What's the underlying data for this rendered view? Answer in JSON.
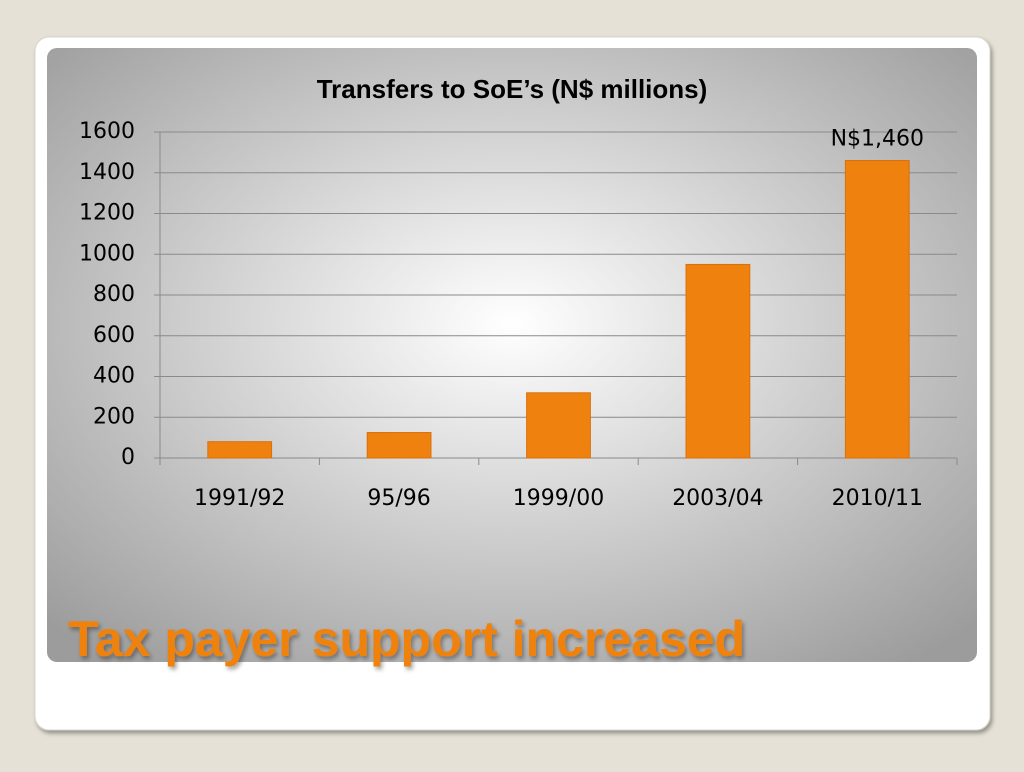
{
  "slide_title": "Tax payer support increased",
  "chart_data": {
    "type": "bar",
    "title": "Transfers to SoE’s (N$ millions)",
    "categories": [
      "1991/92",
      "95/96",
      "1999/00",
      "2003/04",
      "2010/11"
    ],
    "values": [
      80,
      125,
      320,
      950,
      1460
    ],
    "value_labels": [
      null,
      null,
      null,
      null,
      "N$1,460"
    ],
    "color": "#ef810f",
    "ylim": [
      0,
      1600
    ],
    "yticks": [
      0,
      200,
      400,
      600,
      800,
      1000,
      1200,
      1400,
      1600
    ],
    "grid": true
  }
}
